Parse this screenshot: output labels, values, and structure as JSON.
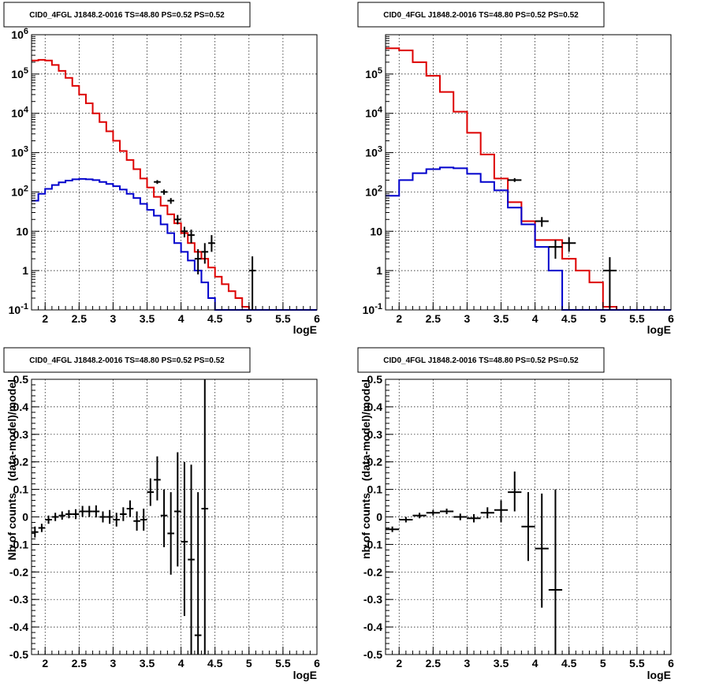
{
  "canvas": {
    "background": "#ffffff"
  },
  "colors": {
    "data": "#000000",
    "model": "#dd0000",
    "background_model": "#0000cc",
    "grid": "#000000"
  },
  "chart_data": [
    {
      "type": "line",
      "title": "CID0_4FGL J1848.2-0016 TS=48.80 PS=0.52 PS=0.52",
      "xlabel": "logE",
      "ylabel": "Nb of counts",
      "xlim": [
        1.8,
        6.0
      ],
      "ylim": [
        0.1,
        1000000
      ],
      "log_y": true,
      "grid": true,
      "x_ticks": [
        "2",
        "2.5",
        "3",
        "3.5",
        "4",
        "4.5",
        "5",
        "5.5",
        "6"
      ],
      "y_ticks": [
        "10^{-1}",
        "1",
        "10",
        "10^{2}",
        "10^{3}",
        "10^{4}",
        "10^{5}",
        "10^{6}"
      ],
      "bin_edges": [
        1.8,
        1.9,
        2.0,
        2.1,
        2.2,
        2.3,
        2.4,
        2.5,
        2.6,
        2.7,
        2.8,
        2.9,
        3.0,
        3.1,
        3.2,
        3.3,
        3.4,
        3.5,
        3.6,
        3.7,
        3.8,
        3.9,
        4.0,
        4.1,
        4.2,
        4.3,
        4.4,
        4.5,
        4.6,
        4.7,
        4.8,
        4.9,
        5.0,
        5.1,
        5.2,
        5.3,
        5.4,
        5.5,
        5.6,
        5.7,
        5.8,
        5.9,
        6.0
      ],
      "series": [
        {
          "name": "",
          "role": "model",
          "color": "#dd0000",
          "values": [
            220000,
            230000,
            220000,
            170000,
            120000,
            80000,
            50000,
            30000,
            18000,
            10000,
            6000,
            3500,
            2000,
            1100,
            650,
            380,
            220,
            130,
            75,
            45,
            27,
            16,
            9,
            5,
            3,
            2,
            1.2,
            0.7,
            0.45,
            0.3,
            0.2,
            0.12,
            0.1,
            0.1,
            0.1,
            0.1,
            0.1,
            0.1,
            0.1,
            0.1,
            0.1,
            0.1
          ]
        },
        {
          "name": "",
          "role": "background",
          "color": "#0000cc",
          "values": [
            60,
            90,
            120,
            150,
            175,
            195,
            210,
            215,
            210,
            200,
            180,
            160,
            140,
            115,
            90,
            70,
            50,
            35,
            25,
            15,
            9,
            5,
            3,
            1.8,
            1.0,
            0.5,
            0.2,
            0.1,
            0.1,
            0.1,
            0.1,
            0.1,
            0.1,
            0.1,
            0.1,
            0.1,
            0.1,
            0.1,
            0.1,
            0.1,
            0.1,
            0.1
          ]
        }
      ],
      "points": [
        {
          "x": 3.65,
          "y": 180,
          "xerr": 0.05,
          "ylo": 160,
          "yhi": 200
        },
        {
          "x": 3.75,
          "y": 100,
          "xerr": 0.05,
          "ylo": 85,
          "yhi": 115
        },
        {
          "x": 3.85,
          "y": 60,
          "xerr": 0.05,
          "ylo": 50,
          "yhi": 70
        },
        {
          "x": 3.95,
          "y": 20,
          "xerr": 0.05,
          "ylo": 15,
          "yhi": 26
        },
        {
          "x": 4.05,
          "y": 10,
          "xerr": 0.05,
          "ylo": 7,
          "yhi": 13
        },
        {
          "x": 4.15,
          "y": 8,
          "xerr": 0.05,
          "ylo": 5,
          "yhi": 11
        },
        {
          "x": 4.25,
          "y": 2,
          "xerr": 0.05,
          "ylo": 0.8,
          "yhi": 3.5
        },
        {
          "x": 4.35,
          "y": 3,
          "xerr": 0.05,
          "ylo": 1.5,
          "yhi": 5
        },
        {
          "x": 4.45,
          "y": 5,
          "xerr": 0.05,
          "ylo": 3,
          "yhi": 8
        },
        {
          "x": 5.05,
          "y": 1,
          "xerr": 0.05,
          "ylo": 0.1,
          "yhi": 2.3
        }
      ]
    },
    {
      "type": "line",
      "title": "CID0_4FGL J1848.2-0016 TS=48.80 PS=0.52 PS=0.52",
      "xlabel": "logE",
      "ylabel": "nb of counts",
      "xlim": [
        1.8,
        6.0
      ],
      "ylim": [
        0.1,
        1000000
      ],
      "log_y": true,
      "grid": true,
      "x_ticks": [
        "2",
        "2.5",
        "3",
        "3.5",
        "4",
        "4.5",
        "5",
        "5.5",
        "6"
      ],
      "y_ticks": [
        "10^{-1}",
        "1",
        "10",
        "10^{2}",
        "10^{3}",
        "10^{4}",
        "10^{5}"
      ],
      "bin_edges": [
        1.8,
        2.0,
        2.2,
        2.4,
        2.6,
        2.8,
        3.0,
        3.2,
        3.4,
        3.6,
        3.8,
        4.0,
        4.2,
        4.4,
        4.6,
        4.8,
        5.0,
        5.2,
        5.4,
        5.6,
        5.8,
        6.0
      ],
      "series": [
        {
          "name": "",
          "role": "model",
          "color": "#dd0000",
          "values": [
            450000,
            400000,
            200000,
            90000,
            35000,
            11000,
            3200,
            900,
            220,
            55,
            18,
            6,
            6,
            2,
            1,
            0.5,
            0.12,
            0.1,
            0.1,
            0.1,
            0.1
          ]
        },
        {
          "name": "",
          "role": "background",
          "color": "#0000cc",
          "values": [
            80,
            200,
            300,
            380,
            420,
            400,
            290,
            180,
            110,
            40,
            15,
            4,
            1,
            0.1,
            0.1,
            0.1,
            0.1,
            0.1,
            0.1,
            0.1,
            0.1
          ]
        }
      ],
      "points": [
        {
          "x": 3.7,
          "y": 200,
          "xerr": 0.1,
          "ylo": 180,
          "yhi": 225
        },
        {
          "x": 4.1,
          "y": 18,
          "xerr": 0.1,
          "ylo": 13,
          "yhi": 23
        },
        {
          "x": 4.3,
          "y": 4,
          "xerr": 0.1,
          "ylo": 2,
          "yhi": 6
        },
        {
          "x": 4.5,
          "y": 5,
          "xerr": 0.1,
          "ylo": 3,
          "yhi": 7
        },
        {
          "x": 5.1,
          "y": 1,
          "xerr": 0.1,
          "ylo": 0.1,
          "yhi": 2.2
        }
      ]
    },
    {
      "type": "scatter",
      "title": "CID0_4FGL J1848.2-0016 TS=48.80 PS=0.52 PS=0.52",
      "xlabel": "logE",
      "ylabel": "(data-model)/model",
      "xlim": [
        1.8,
        6.0
      ],
      "ylim": [
        -0.5,
        0.5
      ],
      "grid": true,
      "x_ticks": [
        "2",
        "2.5",
        "3",
        "3.5",
        "4",
        "4.5",
        "5",
        "5.5",
        "6"
      ],
      "y_ticks": [
        "-0.5",
        "-0.4",
        "-0.3",
        "-0.2",
        "-0.1",
        "0",
        "0.1",
        "0.2",
        "0.3",
        "0.4",
        "0.5"
      ],
      "points": [
        {
          "x": 1.85,
          "y": -0.055,
          "xerr": 0.05,
          "ylo": -0.075,
          "yhi": -0.035
        },
        {
          "x": 1.95,
          "y": -0.04,
          "xerr": 0.05,
          "ylo": -0.055,
          "yhi": -0.025
        },
        {
          "x": 2.05,
          "y": -0.01,
          "xerr": 0.05,
          "ylo": -0.025,
          "yhi": 0.005
        },
        {
          "x": 2.15,
          "y": 0.0,
          "xerr": 0.05,
          "ylo": -0.015,
          "yhi": 0.015
        },
        {
          "x": 2.25,
          "y": 0.005,
          "xerr": 0.05,
          "ylo": -0.01,
          "yhi": 0.02
        },
        {
          "x": 2.35,
          "y": 0.01,
          "xerr": 0.05,
          "ylo": -0.005,
          "yhi": 0.025
        },
        {
          "x": 2.45,
          "y": 0.01,
          "xerr": 0.05,
          "ylo": -0.008,
          "yhi": 0.028
        },
        {
          "x": 2.55,
          "y": 0.02,
          "xerr": 0.05,
          "ylo": 0.0,
          "yhi": 0.04
        },
        {
          "x": 2.65,
          "y": 0.02,
          "xerr": 0.05,
          "ylo": 0.0,
          "yhi": 0.04
        },
        {
          "x": 2.75,
          "y": 0.02,
          "xerr": 0.05,
          "ylo": -0.002,
          "yhi": 0.042
        },
        {
          "x": 2.85,
          "y": 0.0,
          "xerr": 0.05,
          "ylo": -0.02,
          "yhi": 0.02
        },
        {
          "x": 2.95,
          "y": 0.0,
          "xerr": 0.05,
          "ylo": -0.025,
          "yhi": 0.025
        },
        {
          "x": 3.05,
          "y": -0.01,
          "xerr": 0.05,
          "ylo": -0.035,
          "yhi": 0.015
        },
        {
          "x": 3.15,
          "y": 0.01,
          "xerr": 0.05,
          "ylo": -0.015,
          "yhi": 0.035
        },
        {
          "x": 3.25,
          "y": 0.03,
          "xerr": 0.05,
          "ylo": 0.0,
          "yhi": 0.06
        },
        {
          "x": 3.35,
          "y": -0.015,
          "xerr": 0.05,
          "ylo": -0.05,
          "yhi": 0.02
        },
        {
          "x": 3.45,
          "y": -0.01,
          "xerr": 0.05,
          "ylo": -0.05,
          "yhi": 0.03
        },
        {
          "x": 3.55,
          "y": 0.09,
          "xerr": 0.05,
          "ylo": 0.04,
          "yhi": 0.14
        },
        {
          "x": 3.65,
          "y": 0.135,
          "xerr": 0.05,
          "ylo": 0.06,
          "yhi": 0.22
        },
        {
          "x": 3.75,
          "y": 0.005,
          "xerr": 0.05,
          "ylo": -0.11,
          "yhi": 0.1
        },
        {
          "x": 3.85,
          "y": -0.06,
          "xerr": 0.05,
          "ylo": -0.21,
          "yhi": 0.09
        },
        {
          "x": 3.95,
          "y": 0.02,
          "xerr": 0.05,
          "ylo": -0.18,
          "yhi": 0.235
        },
        {
          "x": 4.05,
          "y": -0.09,
          "xerr": 0.05,
          "ylo": -0.36,
          "yhi": 0.2
        },
        {
          "x": 4.15,
          "y": -0.155,
          "xerr": 0.05,
          "ylo": -0.5,
          "yhi": 0.19
        },
        {
          "x": 4.25,
          "y": -0.43,
          "xerr": 0.05,
          "ylo": -0.5,
          "yhi": 0.09
        },
        {
          "x": 4.35,
          "y": 0.03,
          "xerr": 0.05,
          "ylo": -0.5,
          "yhi": 0.5
        }
      ]
    },
    {
      "type": "scatter",
      "title": "CID0_4FGL J1848.2-0016 TS=48.80 PS=0.52 PS=0.52",
      "xlabel": "logE",
      "ylabel": "(data-model)/model",
      "xlim": [
        1.8,
        6.0
      ],
      "ylim": [
        -0.5,
        0.5
      ],
      "grid": true,
      "x_ticks": [
        "2",
        "2.5",
        "3",
        "3.5",
        "4",
        "4.5",
        "5",
        "5.5",
        "6"
      ],
      "y_ticks": [
        "-0.5",
        "-0.4",
        "-0.3",
        "-0.2",
        "-0.1",
        "0",
        "0.1",
        "0.2",
        "0.3",
        "0.4",
        "0.5"
      ],
      "points": [
        {
          "x": 1.9,
          "y": -0.045,
          "xerr": 0.1,
          "ylo": -0.055,
          "yhi": -0.035
        },
        {
          "x": 2.1,
          "y": -0.01,
          "xerr": 0.1,
          "ylo": -0.02,
          "yhi": 0.0
        },
        {
          "x": 2.3,
          "y": 0.005,
          "xerr": 0.1,
          "ylo": -0.005,
          "yhi": 0.015
        },
        {
          "x": 2.5,
          "y": 0.015,
          "xerr": 0.1,
          "ylo": 0.005,
          "yhi": 0.025
        },
        {
          "x": 2.7,
          "y": 0.02,
          "xerr": 0.1,
          "ylo": 0.01,
          "yhi": 0.03
        },
        {
          "x": 2.9,
          "y": 0.0,
          "xerr": 0.1,
          "ylo": -0.012,
          "yhi": 0.012
        },
        {
          "x": 3.1,
          "y": -0.005,
          "xerr": 0.1,
          "ylo": -0.02,
          "yhi": 0.01
        },
        {
          "x": 3.3,
          "y": 0.015,
          "xerr": 0.1,
          "ylo": -0.005,
          "yhi": 0.035
        },
        {
          "x": 3.5,
          "y": 0.025,
          "xerr": 0.1,
          "ylo": -0.02,
          "yhi": 0.06
        },
        {
          "x": 3.7,
          "y": 0.09,
          "xerr": 0.1,
          "ylo": 0.02,
          "yhi": 0.165
        },
        {
          "x": 3.9,
          "y": -0.035,
          "xerr": 0.1,
          "ylo": -0.16,
          "yhi": 0.09
        },
        {
          "x": 4.1,
          "y": -0.115,
          "xerr": 0.1,
          "ylo": -0.33,
          "yhi": 0.085
        },
        {
          "x": 4.3,
          "y": -0.265,
          "xerr": 0.1,
          "ylo": -0.5,
          "yhi": 0.1
        }
      ]
    }
  ]
}
